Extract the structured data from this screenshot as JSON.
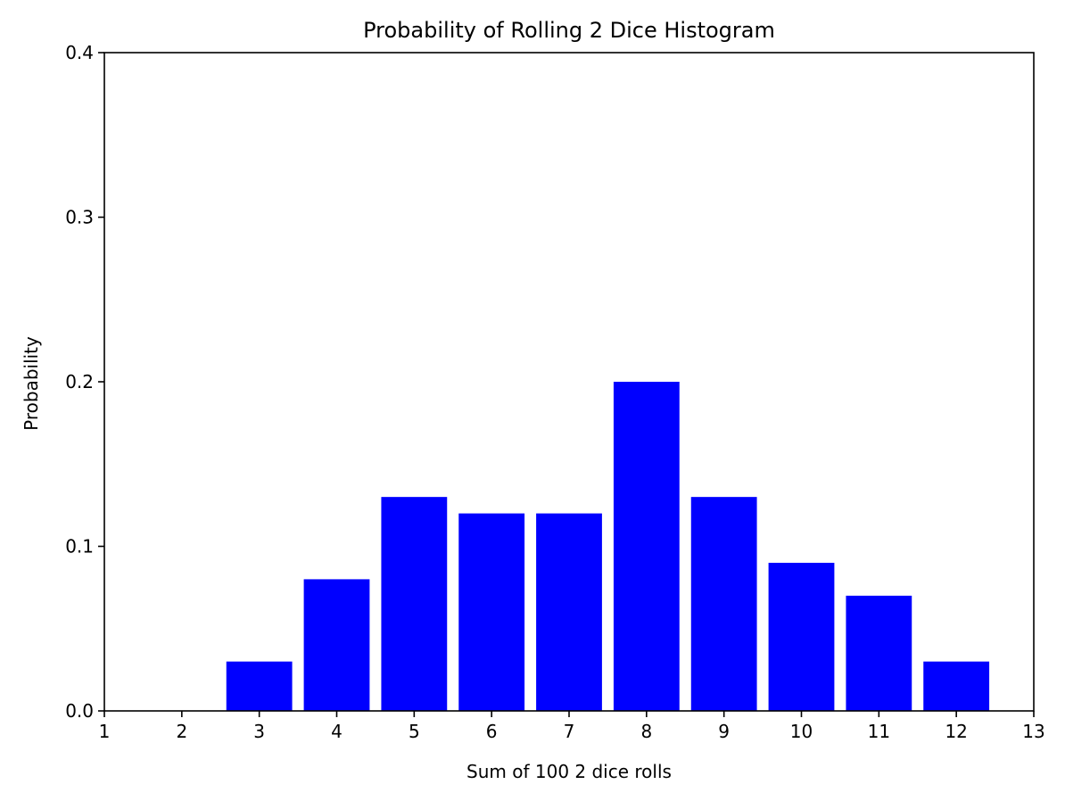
{
  "chart_data": {
    "type": "bar",
    "title": "Probability of Rolling 2 Dice Histogram",
    "xlabel": "Sum of 100 2 dice rolls",
    "ylabel": "Probability",
    "categories": [
      3,
      4,
      5,
      6,
      7,
      8,
      9,
      10,
      11,
      12
    ],
    "values": [
      0.03,
      0.08,
      0.13,
      0.12,
      0.12,
      0.2,
      0.13,
      0.09,
      0.07,
      0.03
    ],
    "bar_width": 0.85,
    "xlim": [
      1,
      13
    ],
    "ylim": [
      0,
      0.4
    ],
    "xticks": [
      1,
      2,
      3,
      4,
      5,
      6,
      7,
      8,
      9,
      10,
      11,
      12,
      13
    ],
    "yticks": [
      0.0,
      0.1,
      0.2,
      0.3,
      0.4
    ],
    "ytick_labels": [
      "0.0",
      "0.1",
      "0.2",
      "0.3",
      "0.4"
    ],
    "grid": false,
    "bar_color": "#0000ff"
  }
}
